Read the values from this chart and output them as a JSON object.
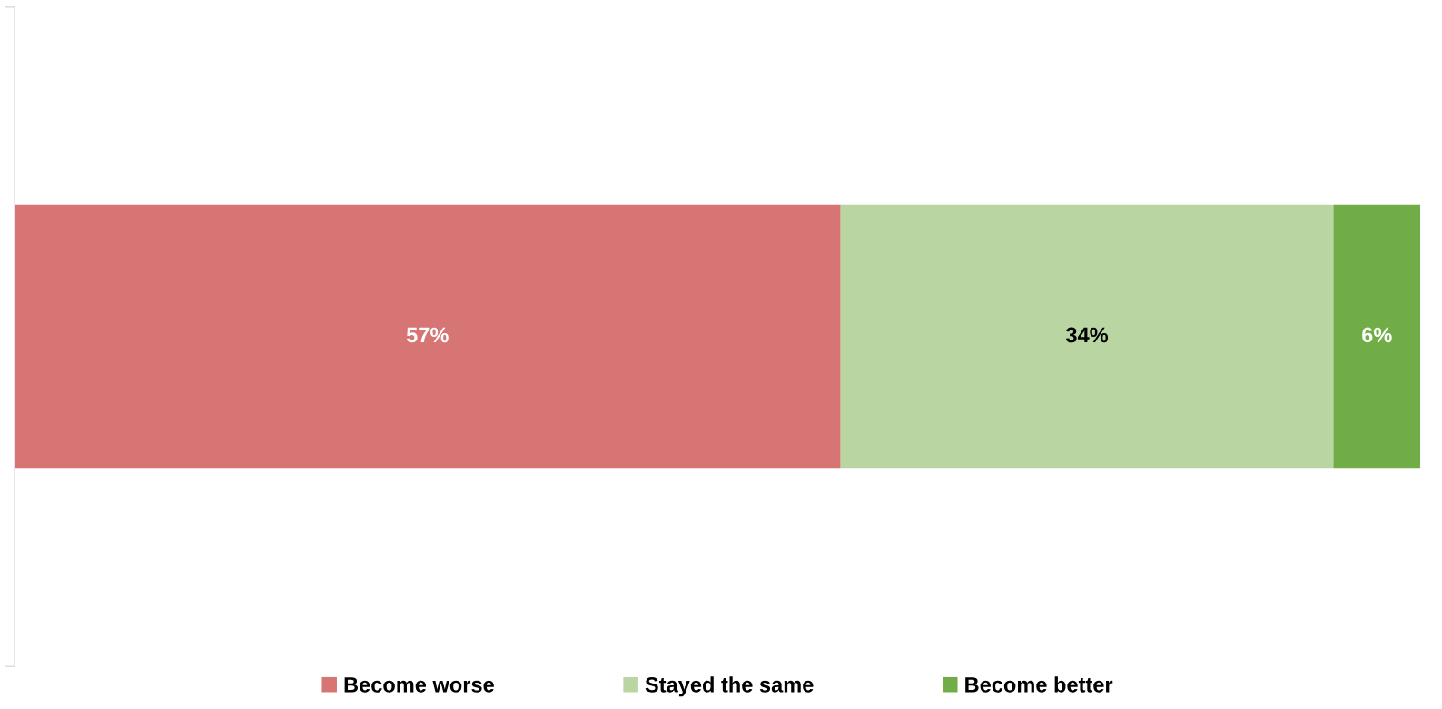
{
  "chart_data": {
    "type": "bar",
    "orientation": "horizontal",
    "stacked": true,
    "categories": [
      null
    ],
    "series": [
      {
        "name": "Become worse",
        "color": "#d67574",
        "values": [
          57
        ],
        "value_labels": [
          "57%"
        ]
      },
      {
        "name": "Stayed the same",
        "color": "#b8d5a2",
        "values": [
          34
        ],
        "value_labels": [
          "34%"
        ]
      },
      {
        "name": "Become better",
        "color": "#70ad47",
        "values": [
          6
        ],
        "value_labels": [
          "6%"
        ]
      }
    ],
    "legend": "bottom"
  }
}
